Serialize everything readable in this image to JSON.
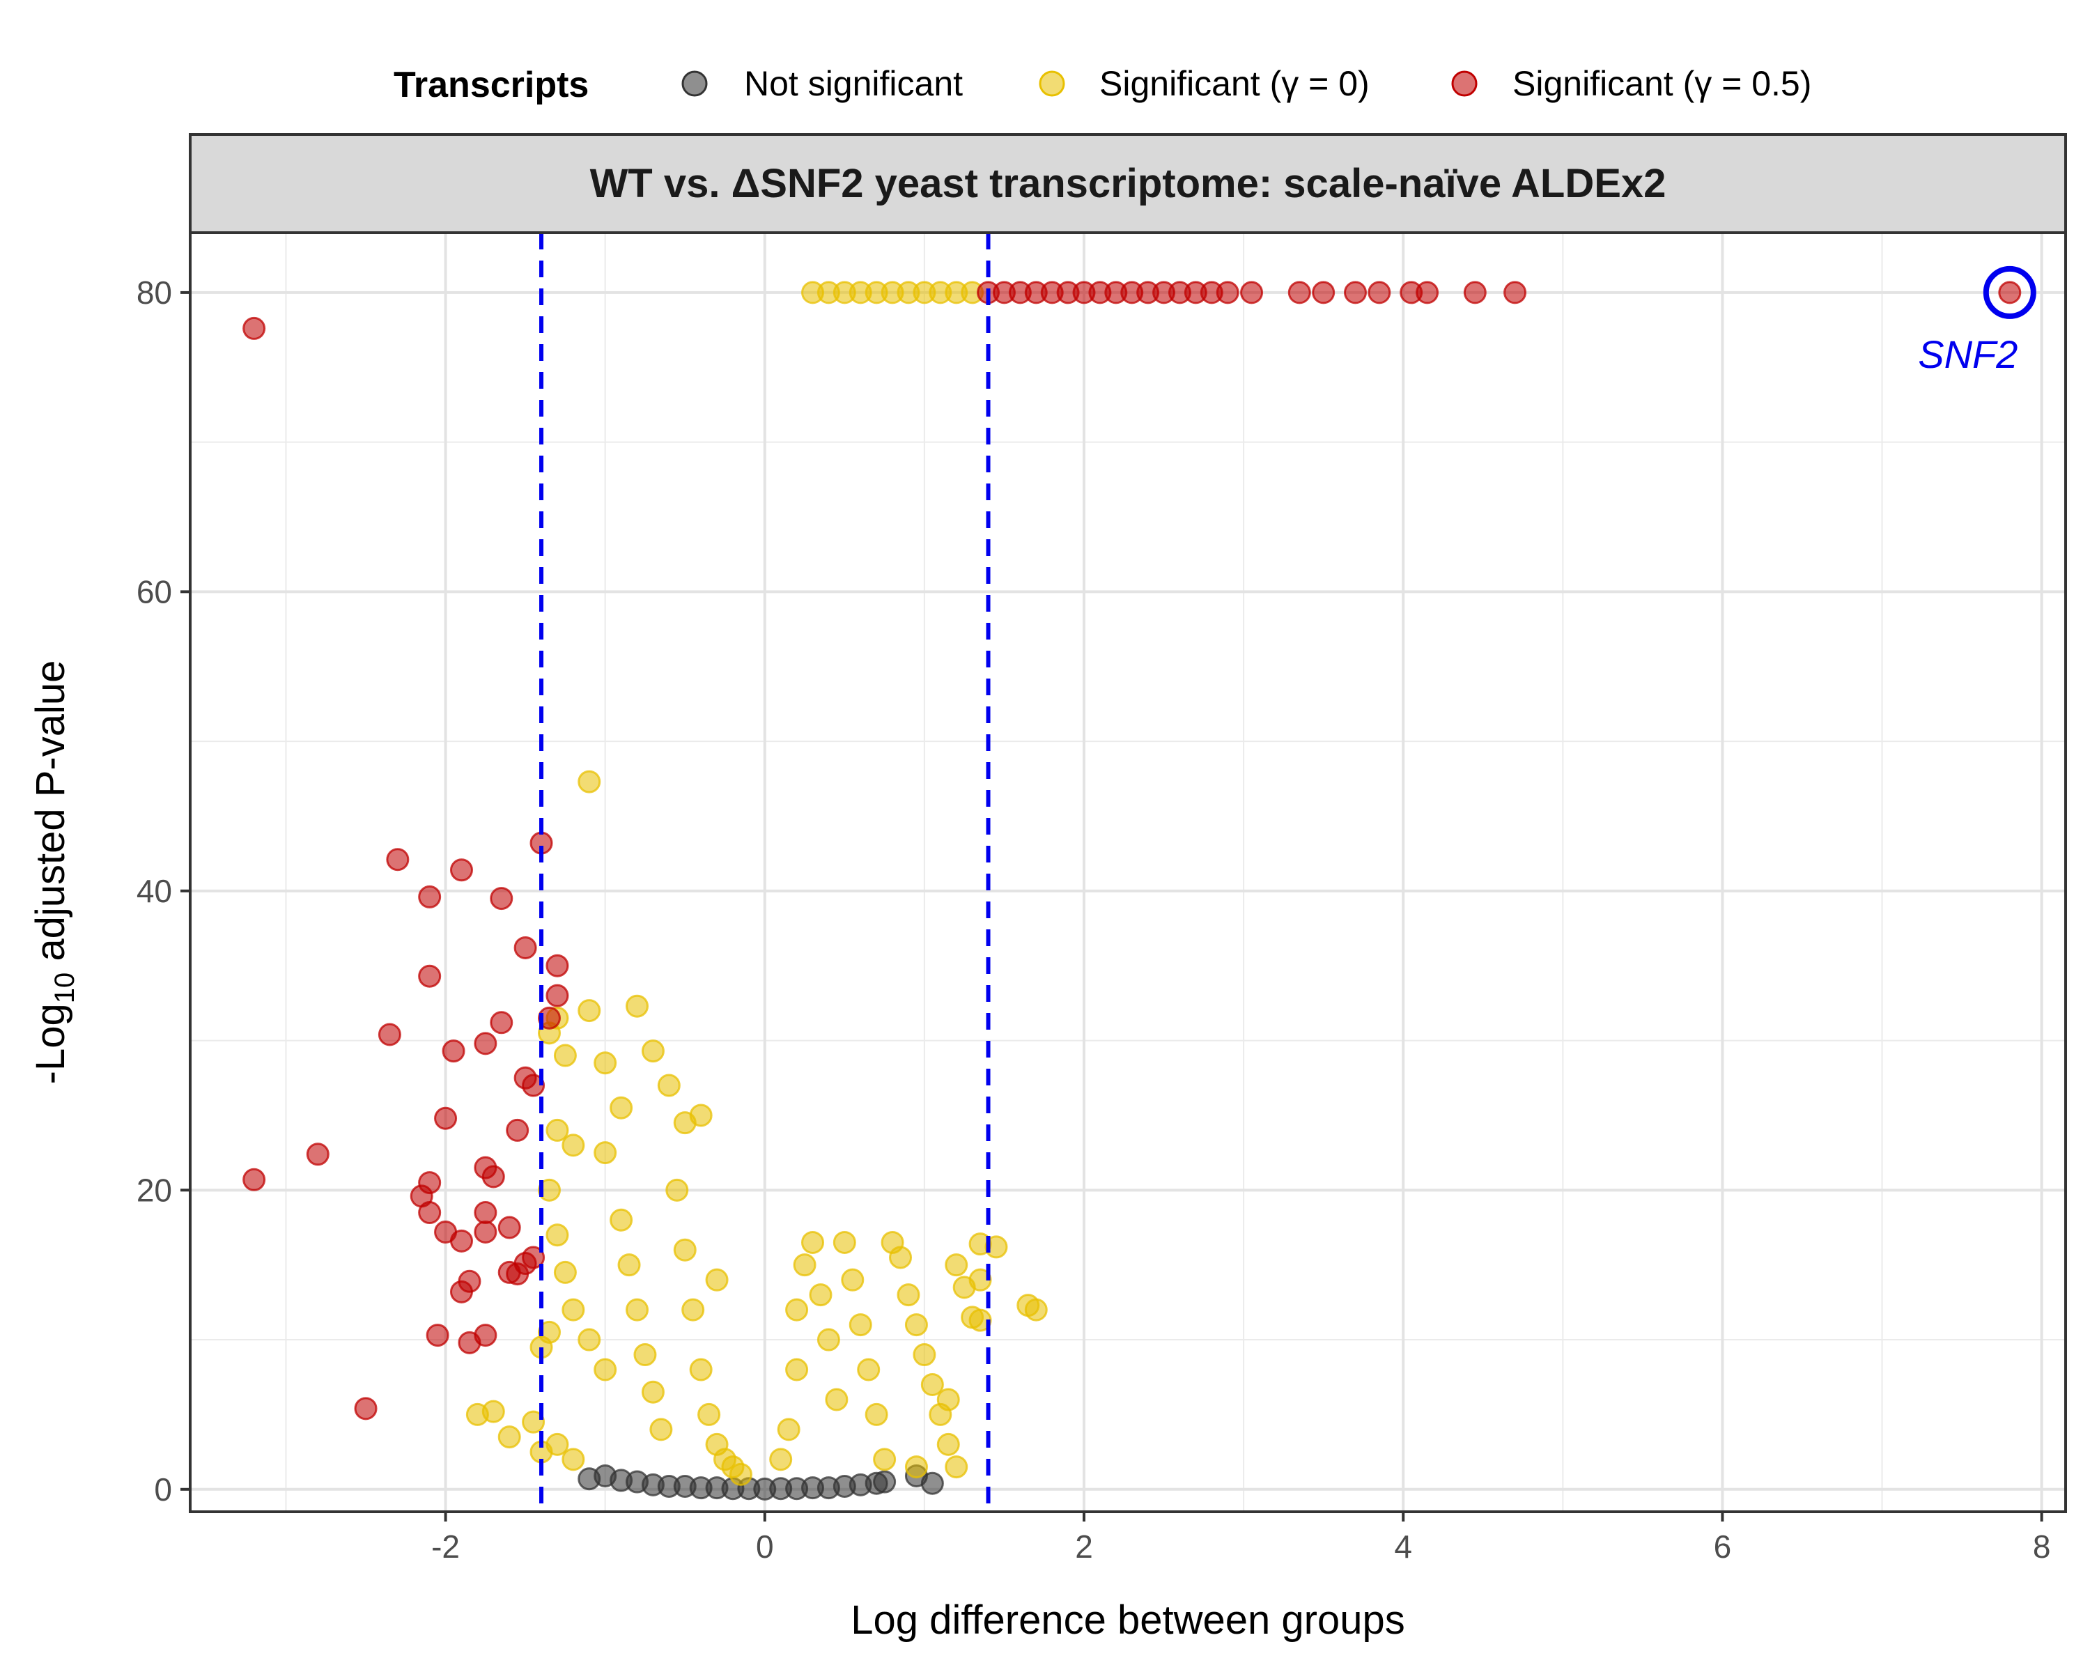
{
  "chart_data": {
    "type": "scatter",
    "title": "WT vs. ΔSNF2 yeast transcriptome: scale-naïve ALDEx2",
    "xlabel": "Log difference between groups",
    "ylabel": {
      "prefix": "-Log",
      "sub": "10",
      "suffix": " adjusted P-value"
    },
    "xlim": [
      -3.6,
      8.15
    ],
    "ylim": [
      -1.5,
      84
    ],
    "xticks": [
      -2,
      0,
      2,
      4,
      6,
      8
    ],
    "xtick_labels": [
      "-2",
      "0",
      "2",
      "4",
      "6",
      "8"
    ],
    "yticks": [
      0,
      20,
      40,
      60,
      80
    ],
    "ytick_labels": [
      "0",
      "20",
      "40",
      "60",
      "80"
    ],
    "grid": true,
    "legend": {
      "title": "Transcripts",
      "position": "top",
      "entries": [
        {
          "label": "Not significant",
          "color": "#333333"
        },
        {
          "label": "Significant (γ = 0)",
          "color": "#E8C000"
        },
        {
          "label": "Significant (γ = 0.5)",
          "color": "#C00000"
        }
      ]
    },
    "thresholds": {
      "x": [
        -1.4,
        1.4
      ],
      "color": "#0000EE",
      "style": "dashed"
    },
    "annotation": {
      "label": "SNF2",
      "x": 7.8,
      "y": 80,
      "color": "#0000EE"
    },
    "series": [
      {
        "name": "Not significant",
        "color": "#333333",
        "points": [
          [
            -1.1,
            0.7
          ],
          [
            -1.0,
            0.9
          ],
          [
            -0.9,
            0.6
          ],
          [
            -0.8,
            0.5
          ],
          [
            -0.7,
            0.3
          ],
          [
            -0.6,
            0.2
          ],
          [
            -0.5,
            0.2
          ],
          [
            -0.4,
            0.1
          ],
          [
            -0.3,
            0.1
          ],
          [
            -0.2,
            0.05
          ],
          [
            -0.1,
            0.05
          ],
          [
            0.0,
            0.02
          ],
          [
            0.1,
            0.05
          ],
          [
            0.2,
            0.05
          ],
          [
            0.3,
            0.1
          ],
          [
            0.4,
            0.1
          ],
          [
            0.5,
            0.2
          ],
          [
            0.6,
            0.3
          ],
          [
            0.7,
            0.4
          ],
          [
            0.75,
            0.5
          ],
          [
            0.95,
            0.9
          ],
          [
            1.05,
            0.4
          ]
        ]
      },
      {
        "name": "Significant (γ = 0)",
        "color": "#E8C000",
        "points": [
          [
            -1.1,
            47.3
          ],
          [
            -1.3,
            31.5
          ],
          [
            -1.1,
            32.0
          ],
          [
            -0.8,
            32.3
          ],
          [
            -1.35,
            30.5
          ],
          [
            -1.25,
            29.0
          ],
          [
            -1.0,
            28.5
          ],
          [
            -0.7,
            29.3
          ],
          [
            -0.6,
            27.0
          ],
          [
            -1.3,
            24.0
          ],
          [
            -1.2,
            23.0
          ],
          [
            -1.0,
            22.5
          ],
          [
            -0.9,
            25.5
          ],
          [
            -1.35,
            20.0
          ],
          [
            -1.3,
            17.0
          ],
          [
            -1.25,
            14.5
          ],
          [
            -1.2,
            12.0
          ],
          [
            -1.1,
            10.0
          ],
          [
            -1.0,
            8.0
          ],
          [
            -1.35,
            10.5
          ],
          [
            -1.4,
            9.5
          ],
          [
            -1.45,
            4.5
          ],
          [
            -1.4,
            2.5
          ],
          [
            -1.6,
            3.5
          ],
          [
            -1.7,
            5.2
          ],
          [
            -1.8,
            5.0
          ],
          [
            -1.3,
            3.0
          ],
          [
            -1.2,
            2.0
          ],
          [
            -0.9,
            18.0
          ],
          [
            -0.85,
            15.0
          ],
          [
            -0.8,
            12.0
          ],
          [
            -0.75,
            9.0
          ],
          [
            -0.7,
            6.5
          ],
          [
            -0.65,
            4.0
          ],
          [
            -0.55,
            20.0
          ],
          [
            -0.5,
            16.0
          ],
          [
            -0.45,
            12.0
          ],
          [
            -0.4,
            8.0
          ],
          [
            -0.35,
            5.0
          ],
          [
            -0.3,
            3.0
          ],
          [
            -0.25,
            2.0
          ],
          [
            -0.2,
            1.5
          ],
          [
            -0.15,
            1.0
          ],
          [
            -0.5,
            24.5
          ],
          [
            -0.4,
            25.0
          ],
          [
            -0.3,
            14.0
          ],
          [
            0.1,
            2.0
          ],
          [
            0.15,
            4.0
          ],
          [
            0.2,
            8.0
          ],
          [
            0.2,
            12.0
          ],
          [
            0.25,
            15.0
          ],
          [
            0.3,
            16.5
          ],
          [
            0.35,
            13.0
          ],
          [
            0.4,
            10.0
          ],
          [
            0.45,
            6.0
          ],
          [
            0.5,
            16.5
          ],
          [
            0.55,
            14.0
          ],
          [
            0.6,
            11.0
          ],
          [
            0.65,
            8.0
          ],
          [
            0.7,
            5.0
          ],
          [
            0.75,
            2.0
          ],
          [
            0.8,
            16.5
          ],
          [
            0.85,
            15.5
          ],
          [
            0.9,
            13.0
          ],
          [
            0.95,
            11.0
          ],
          [
            1.0,
            9.0
          ],
          [
            1.05,
            7.0
          ],
          [
            1.1,
            5.0
          ],
          [
            1.15,
            3.0
          ],
          [
            1.2,
            15.0
          ],
          [
            1.25,
            13.5
          ],
          [
            1.3,
            11.5
          ],
          [
            1.35,
            16.4
          ],
          [
            1.45,
            16.2
          ],
          [
            1.65,
            12.3
          ],
          [
            1.7,
            12.0
          ],
          [
            1.35,
            11.3
          ],
          [
            1.35,
            14.0
          ],
          [
            1.15,
            6.0
          ],
          [
            1.2,
            1.5
          ],
          [
            0.95,
            1.5
          ],
          [
            0.3,
            80
          ],
          [
            0.4,
            80
          ],
          [
            0.5,
            80
          ],
          [
            0.6,
            80
          ],
          [
            0.7,
            80
          ],
          [
            0.8,
            80
          ],
          [
            0.9,
            80
          ],
          [
            1.0,
            80
          ],
          [
            1.1,
            80
          ],
          [
            1.2,
            80
          ],
          [
            1.3,
            80
          ]
        ]
      },
      {
        "name": "Significant (γ = 0.5)",
        "color": "#C00000",
        "points": [
          [
            -3.2,
            77.6
          ],
          [
            -1.4,
            43.2
          ],
          [
            -2.3,
            42.1
          ],
          [
            -1.9,
            41.4
          ],
          [
            -2.1,
            39.6
          ],
          [
            -1.65,
            39.5
          ],
          [
            -1.5,
            36.2
          ],
          [
            -1.3,
            35.0
          ],
          [
            -2.1,
            34.3
          ],
          [
            -1.3,
            33.0
          ],
          [
            -1.35,
            31.5
          ],
          [
            -1.65,
            31.2
          ],
          [
            -2.35,
            30.4
          ],
          [
            -1.75,
            29.8
          ],
          [
            -1.95,
            29.3
          ],
          [
            -1.5,
            27.5
          ],
          [
            -1.45,
            27.0
          ],
          [
            -2.0,
            24.8
          ],
          [
            -1.55,
            24.0
          ],
          [
            -3.2,
            20.7
          ],
          [
            -2.8,
            22.4
          ],
          [
            -2.1,
            20.5
          ],
          [
            -1.75,
            21.5
          ],
          [
            -1.7,
            20.9
          ],
          [
            -2.15,
            19.6
          ],
          [
            -2.1,
            18.5
          ],
          [
            -1.75,
            18.5
          ],
          [
            -1.6,
            17.5
          ],
          [
            -2.0,
            17.2
          ],
          [
            -1.75,
            17.2
          ],
          [
            -1.9,
            16.6
          ],
          [
            -1.45,
            15.5
          ],
          [
            -1.5,
            15.1
          ],
          [
            -1.6,
            14.5
          ],
          [
            -1.9,
            13.2
          ],
          [
            -1.85,
            13.9
          ],
          [
            -1.55,
            14.4
          ],
          [
            -2.05,
            10.3
          ],
          [
            -1.85,
            9.8
          ],
          [
            -1.75,
            10.3
          ],
          [
            -2.5,
            5.4
          ],
          [
            1.4,
            80
          ],
          [
            1.5,
            80
          ],
          [
            1.6,
            80
          ],
          [
            1.7,
            80
          ],
          [
            1.8,
            80
          ],
          [
            1.9,
            80
          ],
          [
            2.0,
            80
          ],
          [
            2.1,
            80
          ],
          [
            2.2,
            80
          ],
          [
            2.3,
            80
          ],
          [
            2.4,
            80
          ],
          [
            2.5,
            80
          ],
          [
            2.6,
            80
          ],
          [
            2.7,
            80
          ],
          [
            2.8,
            80
          ],
          [
            2.9,
            80
          ],
          [
            3.05,
            80
          ],
          [
            3.35,
            80
          ],
          [
            3.5,
            80
          ],
          [
            3.7,
            80
          ],
          [
            3.85,
            80
          ],
          [
            4.05,
            80
          ],
          [
            4.15,
            80
          ],
          [
            4.45,
            80
          ],
          [
            4.7,
            80
          ],
          [
            7.8,
            80
          ]
        ]
      }
    ]
  }
}
